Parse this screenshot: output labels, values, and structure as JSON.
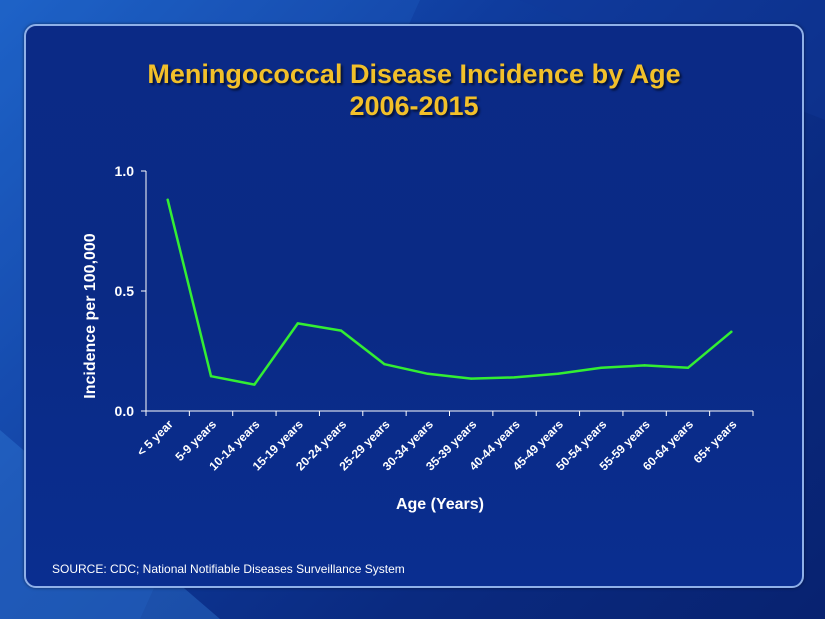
{
  "slide": {
    "title_line1": "Meningococcal Disease Incidence by Age",
    "title_line2": "2006-2015",
    "source": "SOURCE: CDC; National Notifiable Diseases Surveillance System"
  },
  "colors": {
    "title": "#f2c02a",
    "line": "#33ee33",
    "axis": "#ffffff",
    "background": "#0a2a85"
  },
  "chart_data": {
    "type": "line",
    "title": "Meningococcal Disease Incidence by Age 2006-2015",
    "xlabel": "Age (Years)",
    "ylabel": "Incidence  per 100,000",
    "ylim": [
      0,
      1.0
    ],
    "yticks": [
      "0.0",
      "0.5",
      "1.0"
    ],
    "grid": false,
    "categories": [
      "< 5 year",
      "5-9 years",
      "10-14 years",
      "15-19 years",
      "20-24 years",
      "25-29 years",
      "30-34 years",
      "35-39 years",
      "40-44 years",
      "45-49 years",
      "50-54 years",
      "55-59 years",
      "60-64 years",
      "65+ years"
    ],
    "series": [
      {
        "values": [
          0.88,
          0.145,
          0.11,
          0.365,
          0.335,
          0.195,
          0.155,
          0.135,
          0.14,
          0.155,
          0.18,
          0.19,
          0.18,
          0.33
        ]
      }
    ]
  }
}
